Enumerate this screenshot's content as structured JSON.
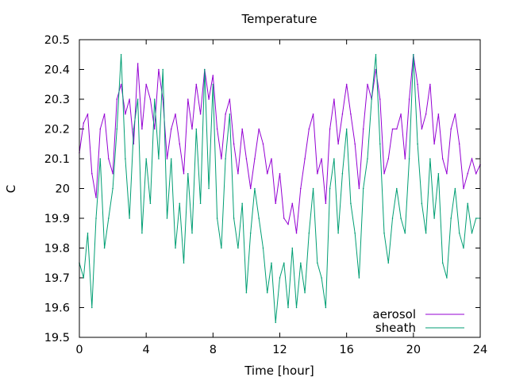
{
  "chart_data": {
    "type": "line",
    "title": "Temperature",
    "xlabel": "Time [hour]",
    "ylabel": "C",
    "xlim": [
      0,
      24
    ],
    "ylim": [
      19.5,
      20.5
    ],
    "x_ticks": [
      0,
      4,
      8,
      12,
      16,
      20,
      24
    ],
    "y_ticks": [
      "19.5",
      "19.6",
      "19.7",
      "19.8",
      "19.9",
      "20",
      "20.1",
      "20.2",
      "20.3",
      "20.4",
      "20.5"
    ],
    "grid": false,
    "legend_position": "bottom-right",
    "series": [
      {
        "name": "aerosol",
        "color": "#9400d3",
        "x": [
          0,
          0.25,
          0.5,
          0.75,
          1,
          1.25,
          1.5,
          1.75,
          2,
          2.25,
          2.5,
          2.75,
          3,
          3.25,
          3.5,
          3.75,
          4,
          4.25,
          4.5,
          4.75,
          5,
          5.25,
          5.5,
          5.75,
          6,
          6.25,
          6.5,
          6.75,
          7,
          7.25,
          7.5,
          7.75,
          8,
          8.25,
          8.5,
          8.75,
          9,
          9.25,
          9.5,
          9.75,
          10,
          10.25,
          10.5,
          10.75,
          11,
          11.25,
          11.5,
          11.75,
          12,
          12.25,
          12.5,
          12.75,
          13,
          13.25,
          13.5,
          13.75,
          14,
          14.25,
          14.5,
          14.75,
          15,
          15.25,
          15.5,
          15.75,
          16,
          16.25,
          16.5,
          16.75,
          17,
          17.25,
          17.5,
          17.75,
          18,
          18.25,
          18.5,
          18.75,
          19,
          19.25,
          19.5,
          19.75,
          20,
          20.25,
          20.5,
          20.75,
          21,
          21.25,
          21.5,
          21.75,
          22,
          22.25,
          22.5,
          22.75,
          23,
          23.25,
          23.5,
          23.75,
          24
        ],
        "y": [
          20.12,
          20.22,
          20.25,
          20.05,
          19.97,
          20.2,
          20.25,
          20.1,
          20.05,
          20.3,
          20.35,
          20.25,
          20.3,
          20.15,
          20.42,
          20.2,
          20.35,
          20.3,
          20.2,
          20.4,
          20.3,
          20.1,
          20.2,
          20.25,
          20.15,
          20.05,
          20.3,
          20.2,
          20.35,
          20.25,
          20.4,
          20.3,
          20.38,
          20.2,
          20.1,
          20.25,
          20.3,
          20.15,
          20.05,
          20.2,
          20.1,
          20.0,
          20.1,
          20.2,
          20.15,
          20.05,
          20.1,
          19.95,
          20.05,
          19.9,
          19.88,
          19.95,
          19.85,
          20.0,
          20.1,
          20.2,
          20.25,
          20.05,
          20.1,
          19.95,
          20.2,
          20.3,
          20.15,
          20.25,
          20.35,
          20.25,
          20.15,
          20.0,
          20.2,
          20.35,
          20.3,
          20.4,
          20.3,
          20.05,
          20.1,
          20.2,
          20.2,
          20.25,
          20.1,
          20.3,
          20.45,
          20.35,
          20.2,
          20.25,
          20.35,
          20.15,
          20.25,
          20.1,
          20.05,
          20.2,
          20.25,
          20.15,
          20.0,
          20.05,
          20.1,
          20.05,
          20.08
        ]
      },
      {
        "name": "sheath",
        "color": "#009e73",
        "x": [
          0,
          0.25,
          0.5,
          0.75,
          1,
          1.25,
          1.5,
          1.75,
          2,
          2.25,
          2.5,
          2.75,
          3,
          3.25,
          3.5,
          3.75,
          4,
          4.25,
          4.5,
          4.75,
          5,
          5.25,
          5.5,
          5.75,
          6,
          6.25,
          6.5,
          6.75,
          7,
          7.25,
          7.5,
          7.75,
          8,
          8.25,
          8.5,
          8.75,
          9,
          9.25,
          9.5,
          9.75,
          10,
          10.25,
          10.5,
          10.75,
          11,
          11.25,
          11.5,
          11.75,
          12,
          12.25,
          12.5,
          12.75,
          13,
          13.25,
          13.5,
          13.75,
          14,
          14.25,
          14.5,
          14.75,
          15,
          15.25,
          15.5,
          15.75,
          16,
          16.25,
          16.5,
          16.75,
          17,
          17.25,
          17.5,
          17.75,
          18,
          18.25,
          18.5,
          18.75,
          19,
          19.25,
          19.5,
          19.75,
          20,
          20.25,
          20.5,
          20.75,
          21,
          21.25,
          21.5,
          21.75,
          22,
          22.25,
          22.5,
          22.75,
          23,
          23.25,
          23.5,
          23.75,
          24
        ],
        "y": [
          19.75,
          19.7,
          19.85,
          19.6,
          19.9,
          20.1,
          19.8,
          19.9,
          20.0,
          20.2,
          20.45,
          20.1,
          19.9,
          20.2,
          20.3,
          19.85,
          20.1,
          19.95,
          20.3,
          20.1,
          20.4,
          19.9,
          20.1,
          19.8,
          19.95,
          19.75,
          20.05,
          19.85,
          20.2,
          19.95,
          20.4,
          20.0,
          20.35,
          19.9,
          19.8,
          20.1,
          20.25,
          19.9,
          19.8,
          19.95,
          19.65,
          19.85,
          20.0,
          19.9,
          19.8,
          19.65,
          19.75,
          19.55,
          19.7,
          19.75,
          19.6,
          19.8,
          19.6,
          19.75,
          19.65,
          19.85,
          20.0,
          19.75,
          19.7,
          19.6,
          20.0,
          20.1,
          19.85,
          20.05,
          20.2,
          19.95,
          19.85,
          19.7,
          20.0,
          20.1,
          20.3,
          20.45,
          20.15,
          19.85,
          19.75,
          19.9,
          20.0,
          19.9,
          19.85,
          20.1,
          20.45,
          20.15,
          19.95,
          19.85,
          20.1,
          19.9,
          20.05,
          19.75,
          19.7,
          19.9,
          20.0,
          19.85,
          19.8,
          19.95,
          19.85,
          19.9,
          19.9
        ]
      }
    ]
  }
}
